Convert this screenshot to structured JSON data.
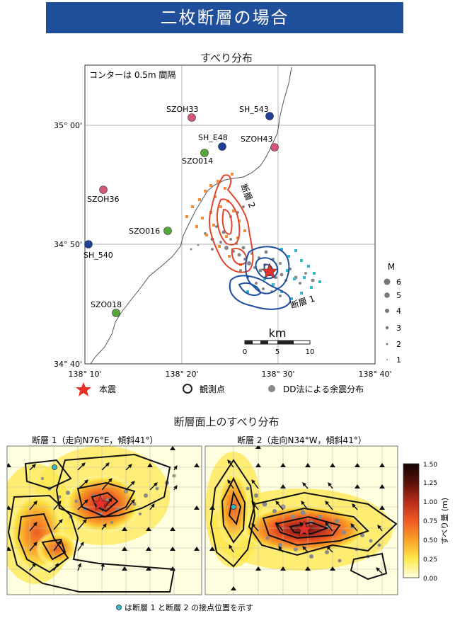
{
  "header": {
    "title": "二枚断層の場合"
  },
  "map": {
    "title": "すべり分布",
    "contour_note": "コンターは 0.5m 間隔",
    "lat_labels": [
      "35° 00'",
      "34° 50'",
      "34° 40'"
    ],
    "lon_labels": [
      "138° 10'",
      "138° 20'",
      "138° 30'",
      "138° 40'"
    ],
    "stations": [
      {
        "name": "SZOH33",
        "color": "#d4587a"
      },
      {
        "name": "SH_543",
        "color": "#1f3f99"
      },
      {
        "name": "SH_E48",
        "color": "#1f3f99"
      },
      {
        "name": "SZOH43",
        "color": "#d4587a"
      },
      {
        "name": "SZO014",
        "color": "#56a83a"
      },
      {
        "name": "SZOH36",
        "color": "#d4587a"
      },
      {
        "name": "SZO016",
        "color": "#56a83a"
      },
      {
        "name": "SH_540",
        "color": "#1f3f99"
      },
      {
        "name": "SZO018",
        "color": "#56a83a"
      }
    ],
    "fault_labels": [
      "断層 2",
      "断層 1"
    ],
    "scale": {
      "unit": "km",
      "ticks": [
        "0",
        "5",
        "10"
      ]
    },
    "magnitude": {
      "title": "M",
      "values": [
        "6",
        "5",
        "4",
        "3",
        "2",
        "1"
      ]
    },
    "legend": {
      "mainshock": "本震",
      "station": "観測点",
      "aftershock": "DD法による余震分布"
    },
    "colors": {
      "fault1": "#1f4fa0",
      "fault2": "#e0442a",
      "mainshock": "#e8302a",
      "fault1_aftershock": "#37b8c8",
      "fault2_aftershock": "#f28c3a"
    }
  },
  "slip": {
    "title": "断層面上のすべり分布",
    "panel1_title": "断層 1（走向N76°E，傾斜41°）",
    "panel2_title": "断層 2（走向N34°W，傾斜41°）",
    "colorbar": {
      "label": "すべり量 (m)",
      "ticks": [
        "1.50",
        "1.25",
        "1.00",
        "0.75",
        "0.50",
        "0.25",
        "0.00"
      ],
      "colors": [
        "#ffffe0",
        "#fde74c",
        "#f9a227",
        "#ee5a24",
        "#b52b1b",
        "#5a1208",
        "#140303"
      ]
    },
    "footnote": "は断層 1 と断層 2 の接点位置を示す"
  }
}
